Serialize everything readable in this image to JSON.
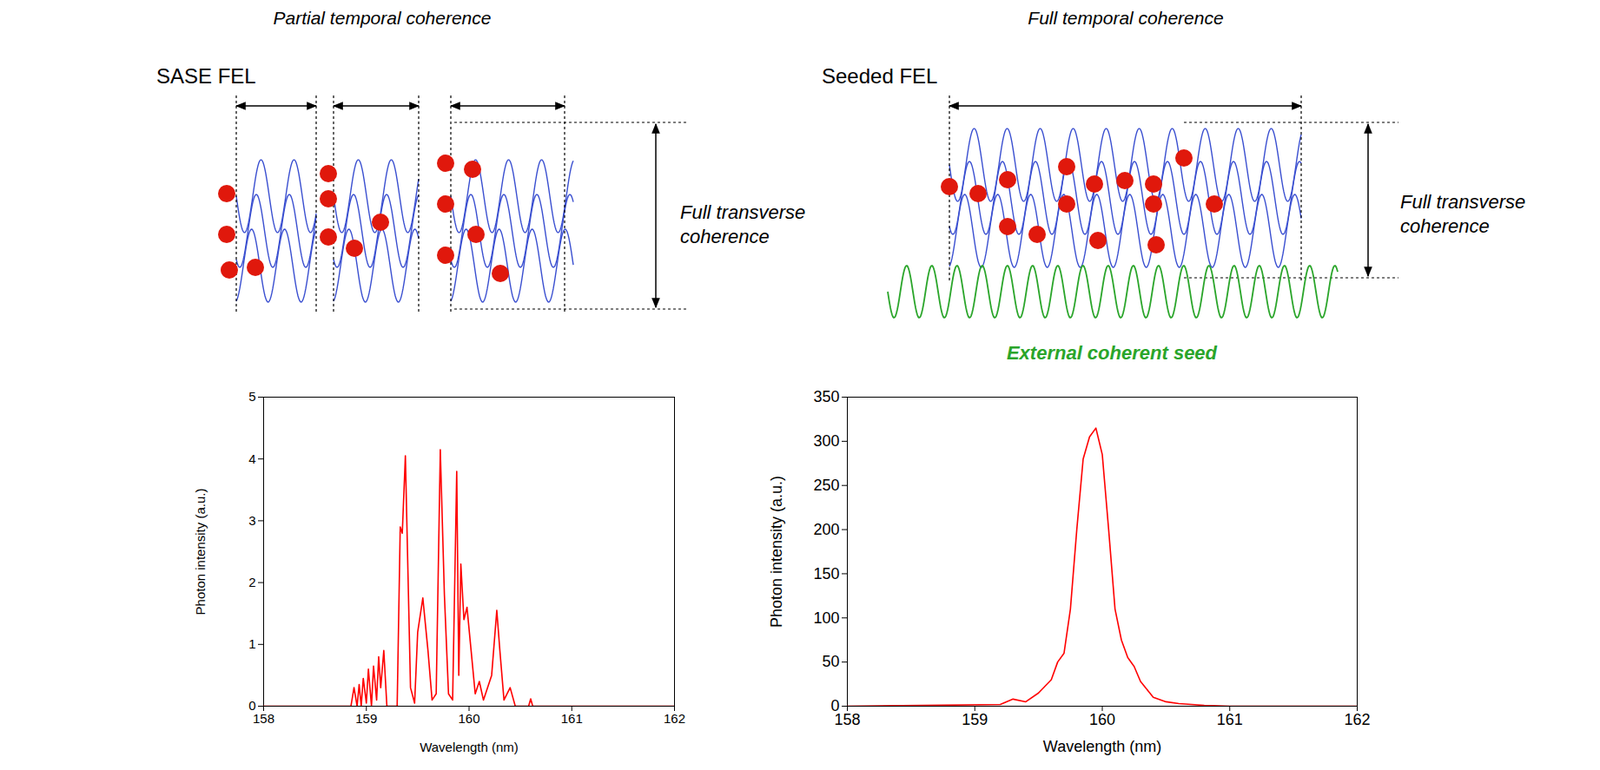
{
  "chart_data": [
    {
      "type": "line",
      "title": "SASE FEL",
      "subtitle": "Partial temporal coherence",
      "annotations": [
        "Full transverse coherence"
      ],
      "x_label": "Wavelength (nm)",
      "y_label": "Photon intensity (a.u.)",
      "x": [
        158,
        158.85,
        158.88,
        158.91,
        158.93,
        158.95,
        158.97,
        159.0,
        159.02,
        159.05,
        159.07,
        159.1,
        159.12,
        159.14,
        159.17,
        159.2,
        159.22,
        159.25,
        159.28,
        159.3,
        159.33,
        159.35,
        159.38,
        159.43,
        159.47,
        159.5,
        159.55,
        159.6,
        159.64,
        159.68,
        159.72,
        159.76,
        159.8,
        159.84,
        159.88,
        159.9,
        159.92,
        159.95,
        159.98,
        160.02,
        160.06,
        160.1,
        160.14,
        160.18,
        160.22,
        160.27,
        160.3,
        160.34,
        160.4,
        160.45,
        160.58,
        160.6,
        160.62,
        162
      ],
      "values": [
        0,
        0,
        0.3,
        0,
        0.35,
        0,
        0.45,
        0.05,
        0.6,
        0,
        0.65,
        0.1,
        0.8,
        0.3,
        0.9,
        0,
        0,
        0,
        0,
        0,
        2.9,
        2.8,
        4.05,
        0.3,
        0.05,
        1.2,
        1.75,
        0.9,
        0.1,
        0.2,
        4.15,
        1.8,
        0.2,
        0.1,
        3.8,
        0.5,
        2.3,
        1.4,
        1.6,
        0.9,
        0.2,
        0.4,
        0.1,
        0.3,
        0.5,
        1.55,
        0.9,
        0.1,
        0.3,
        0,
        0,
        0.12,
        0,
        0
      ],
      "color": "red",
      "xlim": [
        158,
        162
      ],
      "xticks": [
        158,
        159,
        160,
        161,
        162
      ],
      "ylim": [
        0,
        5
      ],
      "yticks": [
        0,
        1,
        2,
        3,
        4,
        5
      ]
    },
    {
      "type": "line",
      "title": "Seeded FEL",
      "subtitle": "Full temporal coherence",
      "annotations": [
        "Full transverse coherence",
        "External coherent seed"
      ],
      "x_label": "Wavelength (nm)",
      "y_label": "Photon intensity (a.u.)",
      "x": [
        158,
        159.2,
        159.3,
        159.4,
        159.5,
        159.6,
        159.65,
        159.7,
        159.75,
        159.8,
        159.85,
        159.9,
        159.95,
        160.0,
        160.05,
        160.1,
        160.15,
        160.2,
        160.25,
        160.3,
        160.4,
        160.5,
        160.6,
        160.8,
        161,
        162
      ],
      "values": [
        0,
        2,
        8,
        5,
        15,
        30,
        50,
        60,
        110,
        200,
        280,
        305,
        315,
        285,
        200,
        110,
        75,
        55,
        45,
        28,
        10,
        5,
        3,
        1,
        0,
        0
      ],
      "color": "red",
      "xlim": [
        158,
        162
      ],
      "xticks": [
        158,
        159,
        160,
        161,
        162
      ],
      "ylim": [
        0,
        350
      ],
      "yticks": [
        0,
        50,
        100,
        150,
        200,
        250,
        300,
        350
      ]
    }
  ]
}
